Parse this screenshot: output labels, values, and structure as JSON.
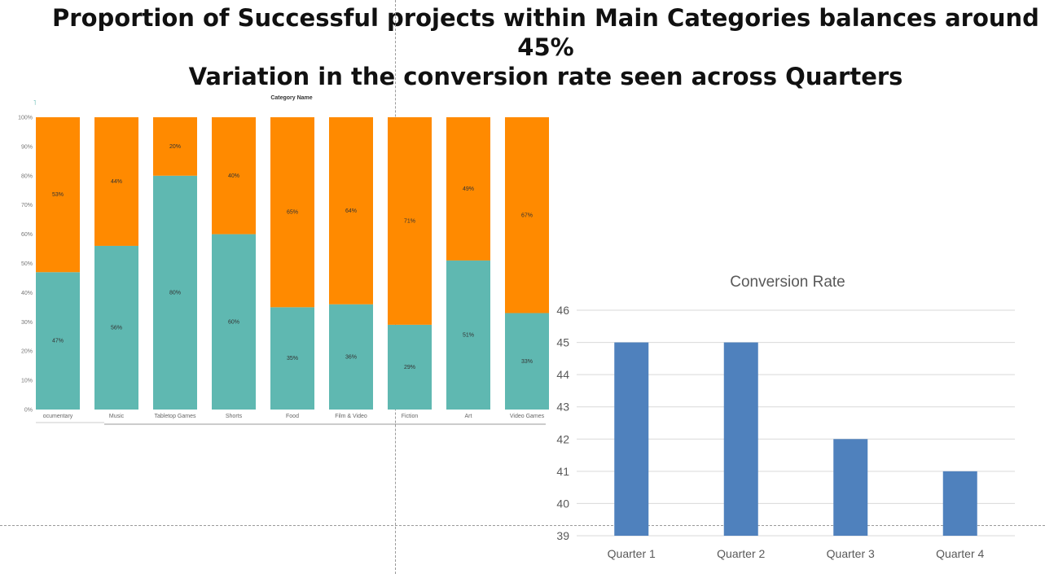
{
  "slide": {
    "title_line1": "Proportion of Successful projects within Main Categories balances around 45%",
    "title_line2": "Variation in the conversion rate seen across Quarters"
  },
  "chart_data": [
    {
      "type": "bar",
      "stacked": true,
      "title": "Category Name",
      "categories": [
        "Documentary",
        "Music",
        "Tabletop Games",
        "Shorts",
        "Food",
        "Film & Video",
        "Fiction",
        "Art",
        "Video Games"
      ],
      "category_labels_visible": [
        "ocumentary",
        "Music",
        "Tabletop Games",
        "Shorts",
        "Food",
        "Film & Video",
        "Fiction",
        "Art",
        "Video Games"
      ],
      "series": [
        {
          "values": [
            47,
            56,
            80,
            60,
            35,
            36,
            29,
            51,
            33
          ],
          "labels": [
            "47%",
            "56%",
            "80%",
            "60%",
            "35%",
            "36%",
            "29%",
            "51%",
            "33%"
          ],
          "color": "#5fb8b1"
        },
        {
          "values": [
            53,
            44,
            20,
            40,
            65,
            64,
            71,
            49,
            67
          ],
          "labels": [
            "53%",
            "44%",
            "20%",
            "40%",
            "65%",
            "64%",
            "71%",
            "49%",
            "67%"
          ],
          "color": "#ff8a00"
        }
      ],
      "y_ticks": [
        "0%",
        "10%",
        "20%",
        "30%",
        "40%",
        "50%",
        "60%",
        "70%",
        "80%",
        "90%",
        "100%"
      ],
      "ylim": [
        0,
        100
      ],
      "grid": false
    },
    {
      "type": "bar",
      "title": "Conversion Rate",
      "categories": [
        "Quarter 1",
        "Quarter 2",
        "Quarter 3",
        "Quarter 4"
      ],
      "values": [
        45,
        45,
        42,
        41
      ],
      "ylim": [
        39,
        46
      ],
      "y_ticks": [
        "39",
        "40",
        "41",
        "42",
        "43",
        "44",
        "45",
        "46"
      ],
      "grid": true,
      "color": "#4f81bd"
    }
  ]
}
